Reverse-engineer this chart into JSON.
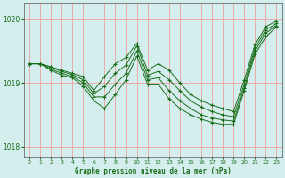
{
  "background_color": "#d4eeed",
  "grid_color": "#f0a0a0",
  "line_color": "#1a6e1a",
  "title": "Graphe pression niveau de la mer (hPa)",
  "ylim": [
    1017.85,
    1020.25
  ],
  "xlim": [
    -0.5,
    23.5
  ],
  "yticks": [
    1018,
    1019,
    1020
  ],
  "xticks": [
    0,
    1,
    2,
    3,
    4,
    5,
    6,
    7,
    8,
    9,
    10,
    11,
    12,
    13,
    14,
    15,
    16,
    17,
    18,
    19,
    20,
    21,
    22,
    23
  ],
  "series": [
    {
      "x": [
        0,
        1,
        2,
        3,
        4,
        5,
        6,
        7,
        8,
        9,
        10,
        11,
        12,
        13,
        14,
        15,
        16,
        17,
        18,
        19,
        20,
        21,
        22,
        23
      ],
      "y": [
        1019.3,
        1019.3,
        1019.25,
        1019.2,
        1019.15,
        1019.1,
        1018.88,
        1019.1,
        1019.3,
        1019.4,
        1019.62,
        1019.2,
        1019.3,
        1019.2,
        1019.0,
        1018.82,
        1018.72,
        1018.65,
        1018.6,
        1018.55,
        1019.05,
        1019.6,
        1019.88,
        1019.97
      ]
    },
    {
      "x": [
        0,
        1,
        2,
        3,
        4,
        5,
        6,
        7,
        8,
        9,
        10,
        11,
        12,
        13,
        14,
        15,
        16,
        17,
        18,
        19,
        20,
        21,
        22,
        23
      ],
      "y": [
        1019.3,
        1019.3,
        1019.25,
        1019.18,
        1019.13,
        1019.05,
        1018.83,
        1018.95,
        1019.15,
        1019.28,
        1019.58,
        1019.12,
        1019.18,
        1019.05,
        1018.88,
        1018.72,
        1018.62,
        1018.55,
        1018.5,
        1018.47,
        1018.98,
        1019.55,
        1019.83,
        1019.93
      ]
    },
    {
      "x": [
        0,
        1,
        2,
        3,
        4,
        5,
        6,
        7,
        8,
        9,
        10,
        11,
        12,
        13,
        14,
        15,
        16,
        17,
        18,
        19,
        20,
        21,
        22,
        23
      ],
      "y": [
        1019.3,
        1019.3,
        1019.22,
        1019.15,
        1019.1,
        1019.0,
        1018.78,
        1018.78,
        1018.98,
        1019.15,
        1019.5,
        1019.05,
        1019.08,
        1018.88,
        1018.72,
        1018.6,
        1018.5,
        1018.45,
        1018.42,
        1018.4,
        1018.92,
        1019.5,
        1019.78,
        1019.9
      ]
    },
    {
      "x": [
        0,
        1,
        2,
        3,
        4,
        5,
        6,
        7,
        8,
        9,
        10,
        11,
        12,
        13,
        14,
        15,
        16,
        17,
        18,
        19,
        20,
        21,
        22,
        23
      ],
      "y": [
        1019.3,
        1019.3,
        1019.2,
        1019.12,
        1019.08,
        1018.95,
        1018.72,
        1018.6,
        1018.82,
        1019.05,
        1019.42,
        1018.98,
        1018.98,
        1018.75,
        1018.6,
        1018.5,
        1018.43,
        1018.38,
        1018.35,
        1018.35,
        1018.88,
        1019.45,
        1019.72,
        1019.88
      ]
    }
  ]
}
